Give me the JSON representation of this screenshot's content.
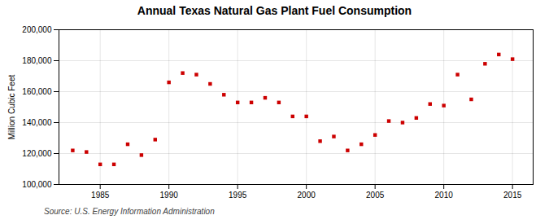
{
  "chart_data": {
    "type": "scatter",
    "title": "Annual Texas Natural Gas Plant Fuel Consumption",
    "ylabel": "Million Cubic Feet",
    "annotation": "Source: U.S. Energy Information Administration",
    "x": [
      1983,
      1984,
      1985,
      1986,
      1987,
      1988,
      1989,
      1990,
      1991,
      1992,
      1993,
      1994,
      1995,
      1996,
      1997,
      1998,
      1999,
      2000,
      2001,
      2002,
      2003,
      2004,
      2005,
      2006,
      2007,
      2008,
      2009,
      2010,
      2011,
      2012,
      2013,
      2014,
      2015
    ],
    "values": [
      122000,
      121000,
      113000,
      113000,
      126000,
      119000,
      129000,
      166000,
      172000,
      171000,
      165000,
      158000,
      153000,
      153000,
      156000,
      153000,
      144000,
      144000,
      128000,
      131000,
      122000,
      126000,
      132000,
      141000,
      140000,
      143000,
      152000,
      151000,
      171000,
      155000,
      178000,
      184000,
      181000
    ],
    "color": "#cc0000",
    "marker": "square",
    "xlim": [
      1982.0,
      2016.5
    ],
    "xticks": [
      1985,
      1990,
      1995,
      2000,
      2005,
      2010,
      2015
    ],
    "ylim": [
      100000,
      200000
    ],
    "yticks": [
      {
        "value": 100000,
        "label": "100,000"
      },
      {
        "value": 120000,
        "label": "120,000"
      },
      {
        "value": 140000,
        "label": "140,000"
      },
      {
        "value": 160000,
        "label": "160,000"
      },
      {
        "value": 180000,
        "label": "180,000"
      },
      {
        "value": 200000,
        "label": "200,000"
      }
    ],
    "grid": true
  }
}
